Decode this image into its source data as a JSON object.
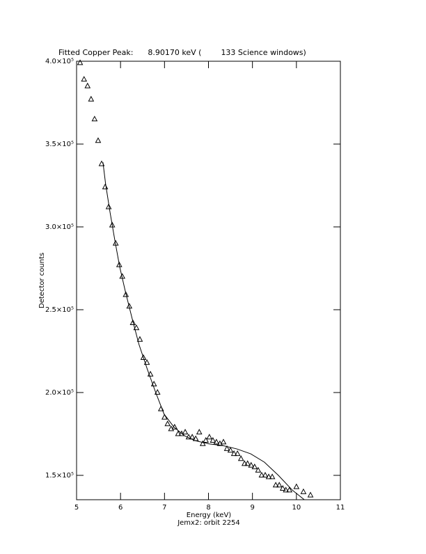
{
  "chart_data": {
    "type": "scatter",
    "title": "Fitted Copper Peak:      8.90170 keV (        133 Science windows)",
    "xlabel": "Energy (keV)",
    "subtitle": "Jemx2: orbit 2254",
    "ylabel": "Detector counts",
    "color": "#000000",
    "xlim": [
      5,
      11
    ],
    "ylim": [
      135300,
      400000
    ],
    "xticks": [
      5,
      6,
      7,
      8,
      9,
      10,
      11
    ],
    "yticks": [
      {
        "value": 150000,
        "label": "1.5×10⁵"
      },
      {
        "value": 200000,
        "label": "2.0×10⁵"
      },
      {
        "value": 250000,
        "label": "2.5×10⁵"
      },
      {
        "value": 300000,
        "label": "3.0×10⁵"
      },
      {
        "value": 350000,
        "label": "3.5×10⁵"
      },
      {
        "value": 400000,
        "label": "4.0×10⁵"
      }
    ],
    "points": {
      "x": [
        5.08,
        5.17,
        5.25,
        5.33,
        5.41,
        5.49,
        5.57,
        5.65,
        5.73,
        5.81,
        5.89,
        5.97,
        6.04,
        6.12,
        6.2,
        6.28,
        6.36,
        6.44,
        6.52,
        6.6,
        6.68,
        6.76,
        6.84,
        6.92,
        7.0,
        7.07,
        7.15,
        7.23,
        7.31,
        7.39,
        7.47,
        7.55,
        7.63,
        7.71,
        7.79,
        7.87,
        7.94,
        8.02,
        8.1,
        8.18,
        8.26,
        8.34,
        8.42,
        8.5,
        8.58,
        8.66,
        8.74,
        8.82,
        8.89,
        8.97,
        9.05,
        9.13,
        9.21,
        9.29,
        9.37,
        9.45,
        9.53,
        9.61,
        9.69,
        9.76,
        9.84,
        10.0,
        10.16,
        10.32
      ],
      "y": [
        399000,
        389000,
        385000,
        377000,
        365000,
        352000,
        338000,
        324000,
        312000,
        301000,
        290000,
        277000,
        270000,
        259000,
        252000,
        242000,
        239000,
        232000,
        221000,
        218000,
        211000,
        205000,
        200000,
        190000,
        185000,
        181000,
        178000,
        179000,
        175000,
        175000,
        176000,
        173000,
        173000,
        172000,
        176000,
        169000,
        171000,
        173000,
        171000,
        170000,
        169000,
        170000,
        166000,
        165000,
        163000,
        163000,
        160000,
        157000,
        157000,
        156000,
        155000,
        153000,
        150000,
        150000,
        149000,
        149000,
        144000,
        144000,
        142000,
        141000,
        141000,
        143000,
        140000,
        138000
      ]
    },
    "fit": {
      "x": [
        5.6,
        5.66,
        5.76,
        5.87,
        5.98,
        6.11,
        6.27,
        6.42,
        6.61,
        6.8,
        6.99,
        7.22,
        7.45,
        7.69,
        8.01,
        8.32,
        8.64,
        8.96,
        9.27,
        9.59,
        9.91,
        10.18
      ],
      "y": [
        339000,
        326000,
        309000,
        292000,
        276000,
        261000,
        244000,
        229000,
        214000,
        200000,
        187000,
        179000,
        174000,
        171000,
        169000,
        168000,
        166000,
        163000,
        158000,
        150000,
        141000,
        135300
      ]
    }
  }
}
